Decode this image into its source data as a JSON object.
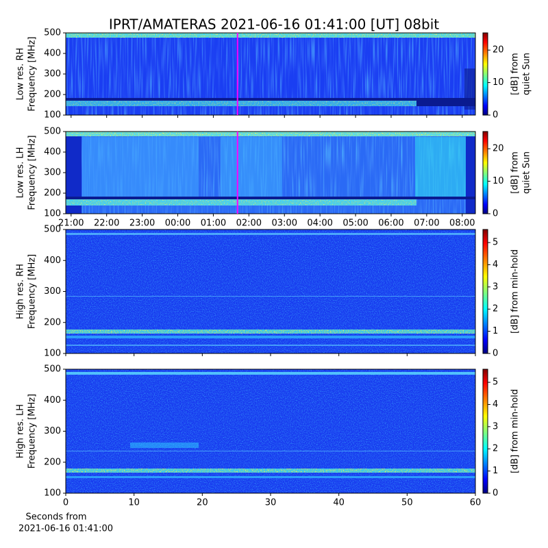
{
  "title": "IPRT/AMATERAS 2021-06-16 01:41:00 [UT]   08bit",
  "chart_data": [
    {
      "type": "heatmap",
      "ylabel": [
        "Low res. RH",
        "Frequency [MHz]"
      ],
      "xlim": [
        20.85,
        32.37
      ],
      "sharex": true,
      "marker_x": 25.68,
      "marker_color": "#ff00ff",
      "ylim": [
        100,
        500
      ],
      "yticks": [
        100,
        200,
        300,
        400,
        500
      ],
      "colorbar_label": [
        "[dB] from",
        "quiet Sun"
      ],
      "colorbar_lim": [
        0,
        25.3
      ],
      "colorbar_ticks": [
        0,
        10,
        20
      ]
    },
    {
      "type": "heatmap",
      "ylabel": [
        "Low res. LH",
        "Frequency [MHz]"
      ],
      "xlim": [
        20.85,
        32.37
      ],
      "xticks": [
        {
          "value": 21,
          "label": "21:00"
        },
        {
          "value": 22,
          "label": "22:00"
        },
        {
          "value": 23,
          "label": "23:00"
        },
        {
          "value": 24,
          "label": "00:00"
        },
        {
          "value": 25,
          "label": "01:00"
        },
        {
          "value": 26,
          "label": "02:00"
        },
        {
          "value": 27,
          "label": "03:00"
        },
        {
          "value": 28,
          "label": "04:00"
        },
        {
          "value": 29,
          "label": "05:00"
        },
        {
          "value": 30,
          "label": "06:00"
        },
        {
          "value": 31,
          "label": "07:00"
        },
        {
          "value": 32,
          "label": "08:00"
        }
      ],
      "marker_x": 25.68,
      "marker_color": "#ff00ff",
      "ylim": [
        100,
        500
      ],
      "yticks": [
        100,
        200,
        300,
        400,
        500
      ],
      "colorbar_label": [
        "[dB] from",
        "quiet Sun"
      ],
      "colorbar_lim": [
        0,
        25.3
      ],
      "colorbar_ticks": [
        0,
        10,
        20
      ]
    },
    {
      "type": "heatmap",
      "ylabel": [
        "High res. RH",
        "Frequency [MHz]"
      ],
      "xlim": [
        0,
        60
      ],
      "sharex": true,
      "ylim": [
        100,
        500
      ],
      "yticks": [
        100,
        200,
        300,
        400,
        500
      ],
      "colorbar_label": [
        "[dB] from min-hold"
      ],
      "colorbar_lim": [
        0,
        5.59
      ],
      "colorbar_ticks": [
        0,
        1,
        2,
        3,
        4,
        5
      ]
    },
    {
      "type": "heatmap",
      "ylabel": [
        "High res. LH",
        "Frequency [MHz]"
      ],
      "xlim": [
        0,
        60
      ],
      "xticks": [
        0,
        10,
        20,
        30,
        40,
        50,
        60
      ],
      "xlabel": [
        "Seconds from",
        "2021-06-16 01:41:00"
      ],
      "ylim": [
        100,
        500
      ],
      "yticks": [
        100,
        200,
        300,
        400,
        500
      ],
      "colorbar_label": [
        "[dB] from min-hold"
      ],
      "colorbar_lim": [
        0,
        5.59
      ],
      "colorbar_ticks": [
        0,
        1,
        2,
        3,
        4,
        5
      ]
    }
  ]
}
